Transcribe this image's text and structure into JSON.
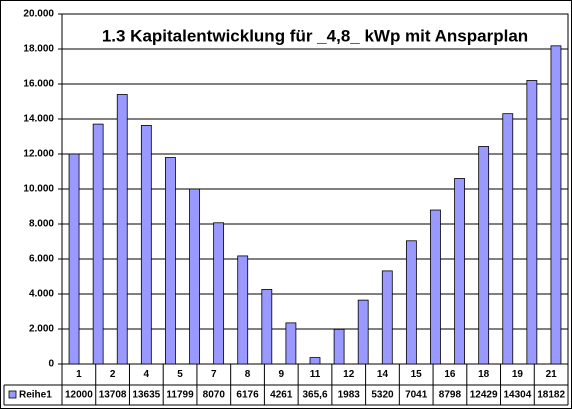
{
  "chart_data": {
    "type": "bar",
    "title": "1.3 Kapitalentwicklung für _4,8_ kWp mit  Ansparplan",
    "categories": [
      "1",
      "2",
      null,
      "4",
      "5",
      null,
      "7",
      "8",
      "9",
      null,
      "11",
      "12",
      null,
      "14",
      "15",
      "16",
      null,
      "18",
      "19",
      null,
      "21"
    ],
    "series": [
      {
        "name": "Reihe1",
        "color": "#9999ff",
        "values": [
          12000,
          13708,
          15400,
          13635,
          11799,
          10000,
          8070,
          6176,
          4261,
          2350,
          365.6,
          1983,
          3650,
          5320,
          7041,
          8798,
          10600,
          12429,
          14304,
          16200,
          18182
        ],
        "value_labels": [
          "12000",
          "13708",
          null,
          "13635",
          "11799",
          null,
          "8070",
          "6176",
          "4261",
          null,
          "365,6",
          "1983",
          null,
          "5320",
          "7041",
          "8798",
          null,
          "12429",
          "14304",
          null,
          "18182"
        ]
      }
    ],
    "ylim": [
      0,
      20000
    ],
    "yticks": [
      0,
      {
        "value": 2000,
        "label": "2.000"
      },
      {
        "value": 4000,
        "label": "4.000"
      },
      {
        "value": 6000,
        "label": "6.000"
      },
      {
        "value": 8000,
        "label": "8.000"
      },
      {
        "value": 10000,
        "label": "10.000"
      },
      {
        "value": 12000,
        "label": "12.000"
      },
      {
        "value": 14000,
        "label": "14.000"
      },
      {
        "value": 16000,
        "label": "16.000"
      },
      {
        "value": 18000,
        "label": "18.000"
      },
      {
        "value": 20000,
        "label": "20.000"
      }
    ],
    "grid": true
  }
}
